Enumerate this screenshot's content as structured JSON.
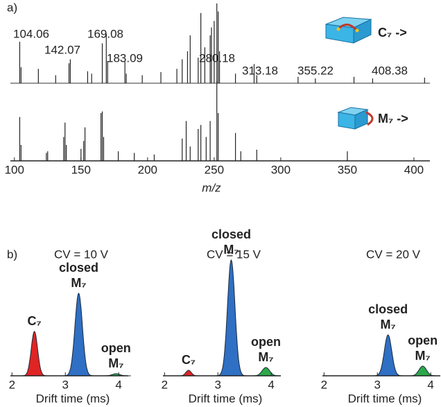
{
  "chart_data": [
    {
      "type": "spectrum",
      "panel_label": "a)",
      "label": "C₇ ->",
      "color": "#222",
      "xlim": [
        97,
        412
      ],
      "ylim": [
        0,
        100
      ],
      "x": [
        104,
        105,
        118,
        131,
        141,
        142,
        155,
        158,
        166,
        169,
        170,
        183,
        184,
        196,
        210,
        222,
        226,
        230,
        232,
        238,
        240,
        243,
        247,
        248,
        250,
        252,
        253,
        254,
        266,
        280,
        282,
        313,
        326,
        355,
        369,
        408
      ],
      "values": [
        52,
        20,
        18,
        10,
        25,
        30,
        15,
        12,
        50,
        62,
        28,
        27,
        12,
        10,
        14,
        18,
        30,
        40,
        60,
        32,
        88,
        45,
        60,
        70,
        78,
        100,
        90,
        40,
        12,
        24,
        10,
        8,
        6,
        8,
        6,
        7
      ],
      "peak_labels": [
        104.06,
        142.07,
        169.08,
        183.09,
        280.18,
        313.18,
        355.22,
        408.38
      ]
    },
    {
      "type": "spectrum",
      "label": "M₇ ->",
      "color": "#222",
      "xlim": [
        97,
        412
      ],
      "ylim": [
        0,
        100
      ],
      "xticks": [
        100,
        150,
        200,
        250,
        300,
        350,
        400
      ],
      "xlabel": "m/z",
      "x": [
        104,
        105,
        124,
        125,
        137,
        138,
        139,
        150,
        152,
        153,
        165,
        166,
        167,
        178,
        190,
        205,
        226,
        229,
        232,
        238,
        240,
        244,
        247,
        252,
        253,
        266,
        270,
        282,
        350
      ],
      "values": [
        55,
        20,
        10,
        12,
        30,
        48,
        20,
        15,
        25,
        42,
        60,
        62,
        30,
        12,
        10,
        8,
        28,
        50,
        18,
        40,
        45,
        30,
        50,
        100,
        60,
        35,
        12,
        14,
        12
      ]
    },
    {
      "type": "drift",
      "panel_label": "b)",
      "title": "CV = 10 V",
      "xlim": [
        1.97,
        4.18
      ],
      "ylim": [
        0,
        170
      ],
      "xticks": [
        2,
        3,
        4
      ],
      "xlabel": "Drift time (ms)",
      "series": [
        {
          "label_lines": [
            "C₇"
          ],
          "color": "#e02424",
          "center": 2.42,
          "height": 64,
          "width": 0.06
        },
        {
          "label_lines": [
            "closed",
            "M₇"
          ],
          "color": "#2f6fc4",
          "center": 3.25,
          "height": 119,
          "width": 0.07
        },
        {
          "label_lines": [
            "open",
            "M₇"
          ],
          "color": "#2ca84a",
          "center": 3.95,
          "height": 3,
          "width": 0.07
        }
      ]
    },
    {
      "type": "drift",
      "title": "CV = 15 V",
      "xlim": [
        1.97,
        4.18
      ],
      "ylim": [
        0,
        170
      ],
      "xticks": [
        2,
        3,
        4
      ],
      "xlabel": "Drift time (ms)",
      "series": [
        {
          "label_lines": [
            "C₇"
          ],
          "color": "#e02424",
          "center": 2.45,
          "height": 8,
          "width": 0.05
        },
        {
          "label_lines": [
            "closed",
            "M₇"
          ],
          "color": "#2f6fc4",
          "center": 3.25,
          "height": 167,
          "width": 0.07
        },
        {
          "label_lines": [
            "open",
            "M₇"
          ],
          "color": "#2ca84a",
          "center": 3.9,
          "height": 12,
          "width": 0.07
        }
      ]
    },
    {
      "type": "drift",
      "title": "CV = 20 V",
      "xlim": [
        1.97,
        4.18
      ],
      "ylim": [
        0,
        170
      ],
      "xticks": [
        2,
        3,
        4
      ],
      "xlabel": "Drift time (ms)",
      "series": [
        {
          "label_lines": [
            "closed",
            "M₇"
          ],
          "color": "#2f6fc4",
          "center": 3.2,
          "height": 59,
          "width": 0.07
        },
        {
          "label_lines": [
            "open",
            "M₇"
          ],
          "color": "#2ca84a",
          "center": 3.85,
          "height": 14,
          "width": 0.07
        }
      ]
    }
  ]
}
